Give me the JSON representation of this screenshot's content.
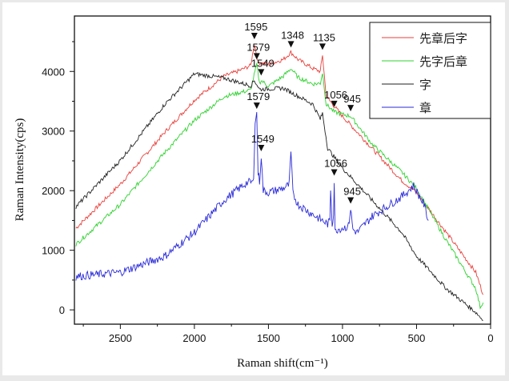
{
  "chart_data": {
    "type": "line",
    "title": "",
    "xlabel": "Raman shift(cm⁻¹)",
    "ylabel": "Raman Intensity(cps)",
    "xlim": [
      2810,
      0
    ],
    "ylim": [
      -240,
      4930
    ],
    "x_ticks": [
      2500,
      2000,
      1500,
      1000,
      500,
      0
    ],
    "y_ticks": [
      0,
      1000,
      2000,
      3000,
      4000
    ],
    "grid": false,
    "legend_position": "top-right",
    "series": [
      {
        "name": "先章后字",
        "color": "#e8413c",
        "x": [
          2800,
          2500,
          2200,
          2000,
          1800,
          1700,
          1620,
          1595,
          1570,
          1500,
          1400,
          1348,
          1300,
          1200,
          1150,
          1135,
          1110,
          1000,
          800,
          600,
          500,
          300,
          100,
          50
        ],
        "y": [
          1370,
          2110,
          2980,
          3520,
          3920,
          4010,
          4100,
          4460,
          4150,
          4120,
          4200,
          4320,
          4200,
          4050,
          4000,
          4280,
          3580,
          3250,
          2710,
          2170,
          1970,
          1300,
          630,
          255
        ]
      },
      {
        "name": "先字后章",
        "color": "#2fd12f",
        "x": [
          2800,
          2500,
          2200,
          2000,
          1800,
          1620,
          1579,
          1560,
          1549,
          1500,
          1400,
          1348,
          1300,
          1200,
          1150,
          1135,
          1110,
          1056,
          1000,
          945,
          800,
          600,
          500,
          300,
          100,
          70,
          50
        ],
        "y": [
          1100,
          1770,
          2640,
          3180,
          3580,
          3690,
          4120,
          3800,
          3850,
          3750,
          3920,
          4050,
          3900,
          3790,
          3800,
          3980,
          3450,
          3320,
          3280,
          3250,
          2780,
          2310,
          2040,
          1170,
          360,
          50,
          120
        ]
      },
      {
        "name": "字",
        "color": "#222222",
        "x": [
          2800,
          2500,
          2200,
          2000,
          1800,
          1620,
          1595,
          1560,
          1400,
          1200,
          1150,
          1135,
          1100,
          1000,
          800,
          600,
          500,
          300,
          100,
          50
        ],
        "y": [
          1730,
          2510,
          3450,
          3960,
          3890,
          3760,
          3850,
          3700,
          3720,
          3450,
          3200,
          3300,
          2710,
          2380,
          1840,
          1300,
          900,
          360,
          -40,
          -175
        ]
      },
      {
        "name": "章",
        "color": "#2a2ad8",
        "x": [
          2800,
          2500,
          2200,
          2000,
          1800,
          1650,
          1600,
          1590,
          1579,
          1570,
          1560,
          1549,
          1535,
          1500,
          1400,
          1360,
          1348,
          1335,
          1300,
          1200,
          1100,
          1085,
          1080,
          1070,
          1060,
          1056,
          1050,
          1040,
          960,
          945,
          930,
          900,
          800,
          600,
          520,
          450,
          420
        ],
        "y": [
          560,
          630,
          900,
          1300,
          1840,
          2130,
          2150,
          3200,
          3290,
          2300,
          2150,
          2580,
          2000,
          1970,
          2040,
          2100,
          2640,
          1950,
          1770,
          1600,
          1440,
          1500,
          2040,
          1450,
          1600,
          2170,
          1300,
          1350,
          1400,
          1700,
          1350,
          1300,
          1570,
          1900,
          2080,
          1770,
          1500
        ]
      }
    ],
    "annotations": [
      {
        "label": "1595",
        "x": 1595,
        "y": 4460
      },
      {
        "label": "1579",
        "x": 1579,
        "y": 4120
      },
      {
        "label": "1348",
        "x": 1348,
        "y": 4320
      },
      {
        "label": "1549",
        "x": 1549,
        "y": 3850
      },
      {
        "label": "1135",
        "x": 1135,
        "y": 4280
      },
      {
        "label": "1056",
        "x": 1056,
        "y": 3320
      },
      {
        "label": "945",
        "x": 945,
        "y": 3250
      },
      {
        "label": "1579",
        "x": 1579,
        "y": 3290
      },
      {
        "label": "1549",
        "x": 1549,
        "y": 2580
      },
      {
        "label": "1056",
        "x": 1056,
        "y": 2170
      },
      {
        "label": "945",
        "x": 945,
        "y": 1700
      }
    ]
  }
}
